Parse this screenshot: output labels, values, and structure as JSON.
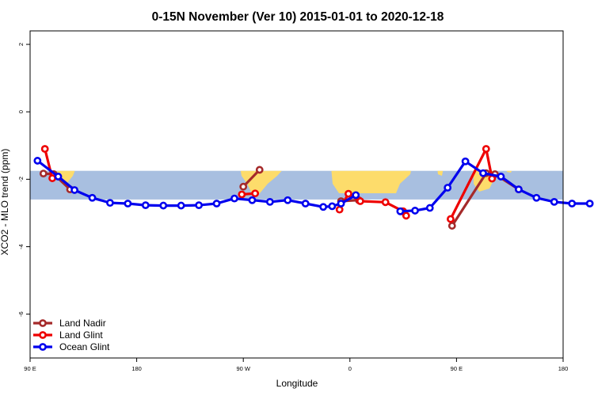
{
  "chart_data": {
    "type": "line",
    "title": "0-15N November (Ver 10)   2015-01-01 to 2020-12-18",
    "xlabel": "Longitude",
    "ylabel": "XCO2 - MLO trend (ppm)",
    "xlim": [
      90,
      450
    ],
    "ylim": [
      -7.3,
      2.4
    ],
    "x_ticks": [
      {
        "value": 90,
        "label": "90 E"
      },
      {
        "value": 162,
        "label": "180"
      },
      {
        "value": 234,
        "label": "90 W"
      },
      {
        "value": 306,
        "label": "0"
      },
      {
        "value": 378,
        "label": "90 E"
      },
      {
        "value": 450,
        "label": "180"
      }
    ],
    "y_ticks": [
      {
        "value": 2,
        "label": "2"
      },
      {
        "value": 0,
        "label": "0"
      },
      {
        "value": -2,
        "label": "-2"
      },
      {
        "value": -4,
        "label": "-4"
      },
      {
        "value": -6,
        "label": "-6"
      }
    ],
    "grid": false,
    "legend": "bottom-left",
    "background_band": {
      "y_range": [
        -1.75,
        -2.6
      ],
      "color": "#a8bfe0",
      "land_color": "#fddc6b"
    },
    "series": [
      {
        "name": "Land Nadir",
        "color": "#a52a2a",
        "segments": [
          {
            "x": [
              99,
              106,
              117
            ],
            "y": [
              -1.83,
              -1.85,
              -2.3
            ]
          },
          {
            "x": [
              234,
              245
            ],
            "y": [
              -2.22,
              -1.72
            ]
          },
          {
            "x": [
              300,
              312
            ],
            "y": [
              -2.65,
              -2.62
            ]
          },
          {
            "x": [
              375,
              398,
              404,
              420
            ],
            "y": [
              -3.38,
              -1.82,
              -1.85,
              -2.3
            ]
          }
        ]
      },
      {
        "name": "Land Glint",
        "color": "#ee0000",
        "segments": [
          {
            "x": [
              100,
              105
            ],
            "y": [
              -1.1,
              -1.97
            ]
          },
          {
            "x": [
              233,
              242
            ],
            "y": [
              -2.45,
              -2.42
            ]
          },
          {
            "x": [
              299,
              305,
              313,
              330,
              342
            ],
            "y": [
              -2.9,
              -2.43,
              -2.65,
              -2.68,
              -2.95
            ]
          },
          {
            "x": [
              341,
              344
            ],
            "y": [
              -2.95,
              -3.08
            ]
          },
          {
            "x": [
              374,
              398,
              402
            ],
            "y": [
              -3.18,
              -1.1,
              -1.98
            ]
          }
        ]
      },
      {
        "name": "Ocean Glint",
        "color": "#0000ee",
        "segments": [
          {
            "x": [
              95,
              109,
              120,
              132,
              144,
              156,
              168,
              180,
              192,
              204,
              216,
              228,
              240,
              252,
              264,
              276,
              288,
              294,
              300,
              310
            ],
            "y": [
              -1.45,
              -1.92,
              -2.32,
              -2.55,
              -2.7,
              -2.72,
              -2.77,
              -2.78,
              -2.78,
              -2.77,
              -2.72,
              -2.57,
              -2.62,
              -2.67,
              -2.62,
              -2.72,
              -2.82,
              -2.8,
              -2.72,
              -2.47
            ]
          },
          {
            "x": [
              340,
              350,
              360,
              372,
              384,
              396,
              408,
              420,
              432,
              444,
              456,
              468
            ],
            "y": [
              -2.95,
              -2.93,
              -2.85,
              -2.25,
              -1.47,
              -1.82,
              -1.92,
              -2.3,
              -2.55,
              -2.67,
              -2.72,
              -2.72
            ]
          }
        ]
      }
    ]
  }
}
